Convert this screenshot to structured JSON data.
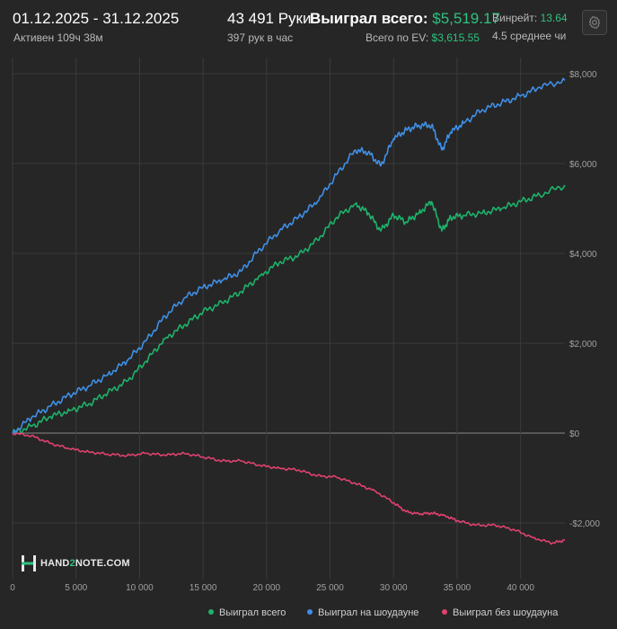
{
  "header": {
    "date_range": "01.12.2025 - 31.12.2025",
    "active_time": "Активен 109ч 38м",
    "hands": "43 491 Руки",
    "hands_per_hour": "397 рук в час",
    "won_total_label": "Выиграл всего:",
    "won_total_value": "$5,519.17",
    "ev_label": "Всего по EV:",
    "ev_value": "$3,615.55",
    "winrate_label": "Винрейт:",
    "winrate_value": "13.64",
    "avg_label": "4.5 среднее чи"
  },
  "logo": {
    "part1": "HAND",
    "part2": "2",
    "part3": "NOTE.COM"
  },
  "colors": {
    "total": "#1db36a",
    "showdown": "#3f8fe6",
    "non_showdown": "#e0426f",
    "grid": "#3b3b3b",
    "axis_text": "#a0a0a0"
  },
  "chart_data": {
    "type": "line",
    "xlim": [
      0,
      43491
    ],
    "ylim": [
      -2600,
      8300
    ],
    "x_ticks": [
      0,
      5000,
      10000,
      15000,
      20000,
      25000,
      30000,
      35000,
      40000
    ],
    "x_tick_labels": [
      "0",
      "5 000",
      "10 000",
      "15 000",
      "20 000",
      "25 000",
      "30 000",
      "35 000",
      "40 000"
    ],
    "y_ticks": [
      -2000,
      0,
      2000,
      4000,
      6000,
      8000
    ],
    "y_tick_labels": [
      "-$2,000",
      "$0",
      "$2,000",
      "$4,000",
      "$6,000",
      "$8,000"
    ],
    "series": [
      {
        "name": "Выиграл всего",
        "x": [
          0,
          1500,
          3000,
          4500,
          6000,
          7500,
          9000,
          10500,
          12000,
          13500,
          15000,
          16500,
          18000,
          19500,
          21000,
          22500,
          24000,
          25500,
          27000,
          28000,
          29000,
          30000,
          31000,
          32000,
          33000,
          33800,
          34500,
          35500,
          37000,
          38500,
          40000,
          41500,
          43491
        ],
        "y": [
          0,
          150,
          370,
          500,
          650,
          900,
          1150,
          1600,
          2100,
          2400,
          2700,
          2900,
          3150,
          3500,
          3800,
          3950,
          4300,
          4800,
          5100,
          4900,
          4500,
          4850,
          4700,
          4900,
          5150,
          4500,
          4800,
          4850,
          4900,
          5000,
          5150,
          5300,
          5519
        ]
      },
      {
        "name": "Выиграл на шоудауне",
        "x": [
          0,
          1500,
          3000,
          4500,
          6000,
          7500,
          9000,
          10500,
          12000,
          13500,
          15000,
          16500,
          18000,
          19500,
          21000,
          22500,
          24000,
          25500,
          27000,
          28000,
          29000,
          30000,
          31000,
          32000,
          33000,
          33800,
          34500,
          35500,
          37000,
          38500,
          40000,
          41500,
          43491
        ],
        "y": [
          0,
          350,
          600,
          850,
          1050,
          1300,
          1600,
          2050,
          2600,
          3000,
          3250,
          3400,
          3600,
          4100,
          4500,
          4800,
          5150,
          5750,
          6300,
          6250,
          5950,
          6550,
          6750,
          6850,
          6850,
          6300,
          6700,
          6900,
          7200,
          7350,
          7500,
          7700,
          7850
        ]
      },
      {
        "name": "Выиграл без шоудауна",
        "x": [
          0,
          1500,
          3000,
          4500,
          6000,
          7500,
          9000,
          10500,
          12000,
          13500,
          15000,
          16500,
          18000,
          19500,
          21000,
          22500,
          24000,
          25500,
          27000,
          28500,
          30000,
          31000,
          32000,
          33000,
          34000,
          35000,
          36500,
          38000,
          39500,
          41000,
          42500,
          43491
        ],
        "y": [
          0,
          -60,
          -230,
          -350,
          -420,
          -470,
          -500,
          -450,
          -490,
          -450,
          -530,
          -620,
          -620,
          -720,
          -780,
          -820,
          -950,
          -980,
          -1120,
          -1280,
          -1550,
          -1750,
          -1800,
          -1780,
          -1830,
          -1950,
          -2050,
          -2050,
          -2150,
          -2330,
          -2450,
          -2380
        ]
      }
    ]
  }
}
